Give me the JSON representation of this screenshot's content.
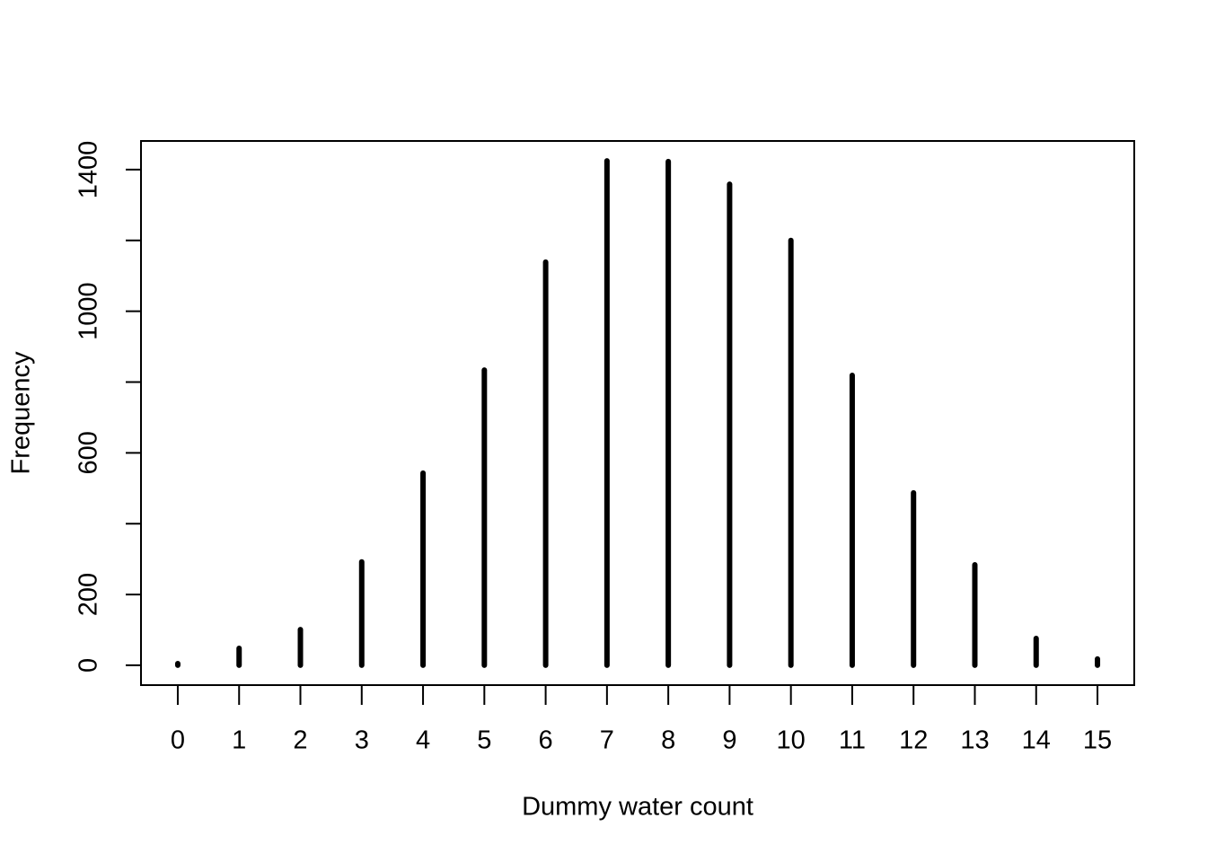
{
  "chart_data": {
    "type": "bar",
    "x_label": "Dummy water count",
    "y_label": "Frequency",
    "x": [
      0,
      1,
      2,
      3,
      4,
      5,
      6,
      7,
      8,
      9,
      10,
      11,
      12,
      13,
      14,
      15
    ],
    "values": [
      5,
      48,
      101,
      292,
      543,
      834,
      1139,
      1425,
      1423,
      1359,
      1200,
      819,
      487,
      284,
      76,
      18
    ],
    "color": "#000000",
    "xlim": [
      -0.6,
      15.6
    ],
    "xticks": [
      0,
      1,
      2,
      3,
      4,
      5,
      6,
      7,
      8,
      9,
      10,
      11,
      12,
      13,
      14,
      15
    ],
    "ylim": [
      -56,
      1481
    ],
    "yticks": [
      0,
      200,
      600,
      1000,
      1400
    ],
    "yminorticks": [
      400,
      800,
      1200
    ],
    "grid": false
  }
}
